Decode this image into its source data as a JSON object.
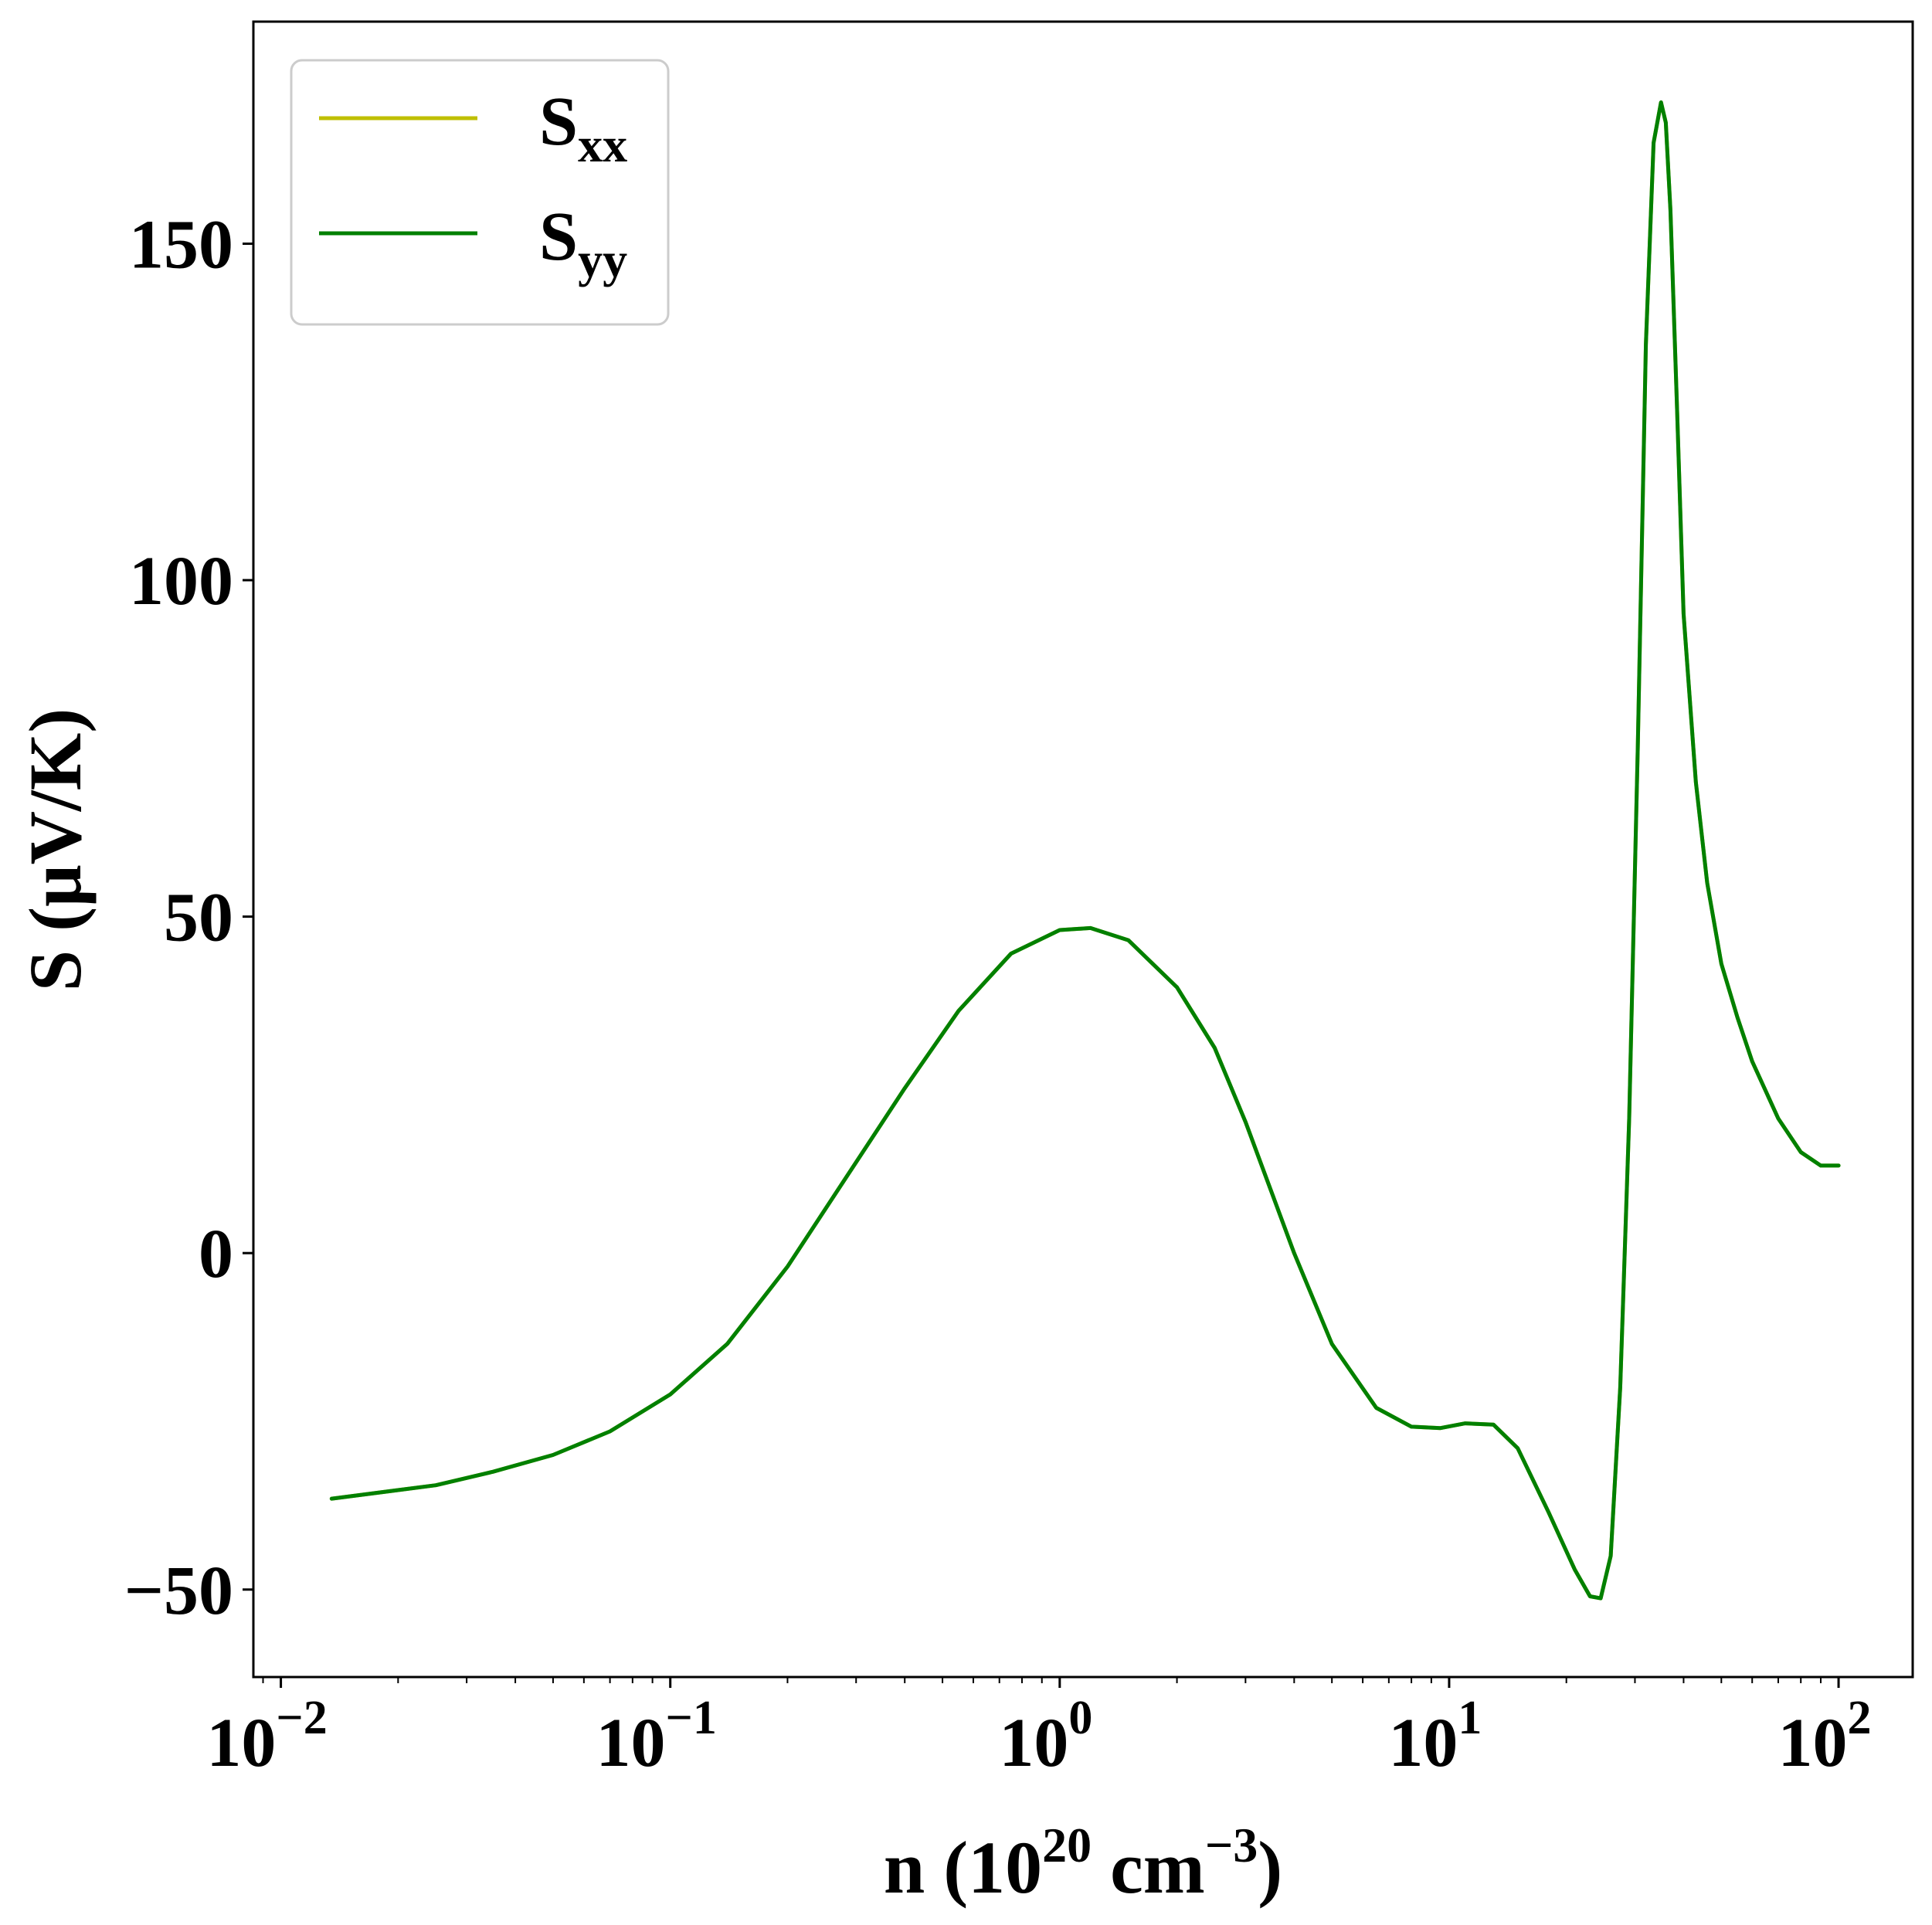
{
  "chart_data": {
    "type": "line",
    "x_scale": "log",
    "xlim": [
      0.0085,
      155
    ],
    "ylim": [
      -63,
      183
    ],
    "x_ticks": [
      {
        "value": 0.01,
        "base": "10",
        "exp": "−2"
      },
      {
        "value": 0.1,
        "base": "10",
        "exp": "−1"
      },
      {
        "value": 1,
        "base": "10",
        "exp": "0"
      },
      {
        "value": 10,
        "base": "10",
        "exp": "1"
      },
      {
        "value": 100,
        "base": "10",
        "exp": "2"
      }
    ],
    "y_ticks": [
      {
        "value": -50,
        "label": "−50"
      },
      {
        "value": 0,
        "label": "0"
      },
      {
        "value": 50,
        "label": "50"
      },
      {
        "value": 100,
        "label": "100"
      },
      {
        "value": 150,
        "label": "150"
      }
    ],
    "xlabel": {
      "pre": "n (10",
      "sup1": "20",
      "mid": " cm",
      "sup2": "−3",
      "post": ")"
    },
    "ylabel": "S (μV/K)",
    "grid": false,
    "legend": {
      "placement": "top-left",
      "entries": [
        {
          "main": "S",
          "sub": "xx",
          "color": "#bfbf00"
        },
        {
          "main": "S",
          "sub": "yy",
          "color": "#008000"
        }
      ]
    },
    "series": [
      {
        "name": "Sxx",
        "color": "#bfbf00",
        "x": [
          0.0135,
          0.025,
          0.035,
          0.05,
          0.07,
          0.1,
          0.14,
          0.2,
          0.3,
          0.4,
          0.55,
          0.75,
          1.0,
          1.2,
          1.5,
          2.0,
          2.5,
          3.0,
          4.0,
          5.0,
          6.5,
          8.0,
          9.5,
          11.0,
          13.0,
          15.0,
          18.0,
          21.0,
          23.0,
          24.5,
          26.0,
          27.5,
          29.0,
          30.5,
          32.0,
          33.5,
          35.0,
          36.0,
          37.0,
          38.5,
          40.0,
          43.0,
          46.0,
          50.0,
          55.0,
          60.0,
          70.0,
          80.0,
          90.0,
          100.0
        ],
        "y": [
          -36.5,
          -34.5,
          -32.5,
          -30,
          -26.5,
          -21,
          -13.5,
          -2,
          13.5,
          24.5,
          36,
          44.5,
          48,
          48.3,
          46.5,
          39.5,
          30.5,
          19.5,
          0,
          -13.5,
          -23,
          -25.8,
          -26,
          -25.3,
          -25.5,
          -29,
          -38.5,
          -47,
          -51,
          -51.3,
          -45,
          -20,
          20,
          75,
          135,
          165,
          171,
          168,
          155,
          125,
          95,
          70,
          55,
          43,
          35,
          28.5,
          20,
          15,
          13,
          13
        ],
        "hidden_under": "Syy"
      },
      {
        "name": "Syy",
        "color": "#008000",
        "x": [
          0.0135,
          0.025,
          0.035,
          0.05,
          0.07,
          0.1,
          0.14,
          0.2,
          0.3,
          0.4,
          0.55,
          0.75,
          1.0,
          1.2,
          1.5,
          2.0,
          2.5,
          3.0,
          4.0,
          5.0,
          6.5,
          8.0,
          9.5,
          11.0,
          13.0,
          15.0,
          18.0,
          21.0,
          23.0,
          24.5,
          26.0,
          27.5,
          29.0,
          30.5,
          32.0,
          33.5,
          35.0,
          36.0,
          37.0,
          38.5,
          40.0,
          43.0,
          46.0,
          50.0,
          55.0,
          60.0,
          70.0,
          80.0,
          90.0,
          100.0
        ],
        "y": [
          -36.5,
          -34.5,
          -32.5,
          -30,
          -26.5,
          -21,
          -13.5,
          -2,
          13.5,
          24.5,
          36,
          44.5,
          48,
          48.3,
          46.5,
          39.5,
          30.5,
          19.5,
          0,
          -13.5,
          -23,
          -25.8,
          -26,
          -25.3,
          -25.5,
          -29,
          -38.5,
          -47,
          -51,
          -51.3,
          -45,
          -20,
          20,
          75,
          135,
          165,
          171,
          168,
          155,
          125,
          95,
          70,
          55,
          43,
          35,
          28.5,
          20,
          15,
          13,
          13
        ]
      }
    ]
  }
}
